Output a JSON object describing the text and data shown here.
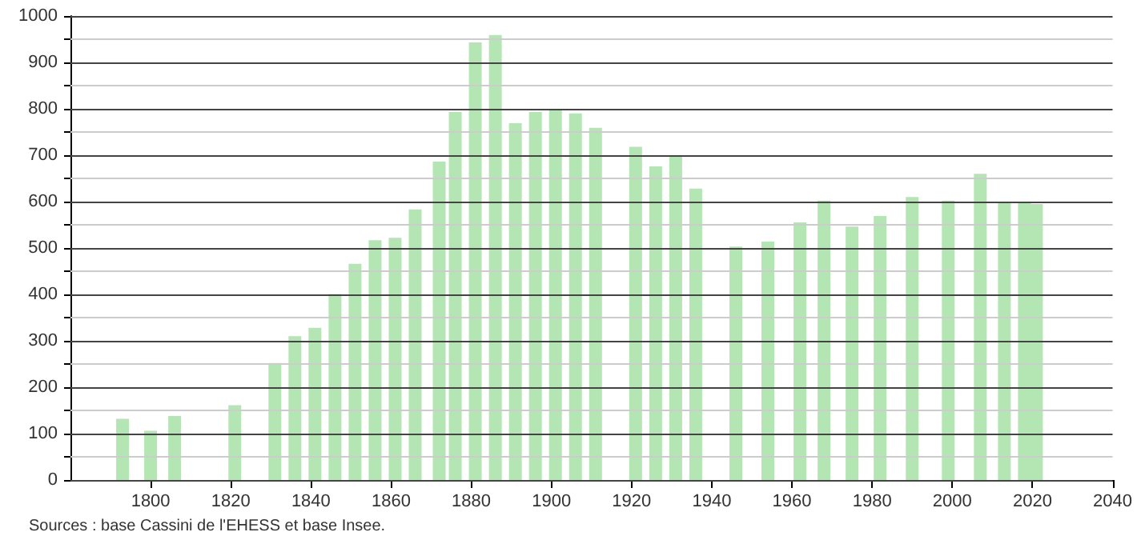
{
  "chart_data": {
    "type": "bar",
    "x": [
      1793,
      1800,
      1806,
      1821,
      1831,
      1836,
      1841,
      1846,
      1851,
      1856,
      1861,
      1866,
      1872,
      1876,
      1881,
      1886,
      1891,
      1896,
      1901,
      1906,
      1911,
      1921,
      1926,
      1931,
      1936,
      1946,
      1954,
      1962,
      1968,
      1975,
      1982,
      1990,
      1999,
      2007,
      2013,
      2018,
      2021
    ],
    "values": [
      132,
      106,
      138,
      161,
      252,
      310,
      328,
      401,
      466,
      517,
      522,
      583,
      686,
      793,
      943,
      959,
      769,
      793,
      798,
      790,
      759,
      718,
      676,
      697,
      628,
      503,
      514,
      555,
      602,
      546,
      569,
      610,
      602,
      660,
      600,
      597,
      595
    ],
    "color": "#b3e6b3",
    "xlim": [
      1780,
      2040
    ],
    "xticks": [
      1800,
      1820,
      1840,
      1860,
      1880,
      1900,
      1920,
      1940,
      1960,
      1980,
      2000,
      2020,
      2040
    ],
    "ylim": [
      0,
      1000
    ],
    "yticks": [
      0,
      {
        "value": 50,
        "label": null
      },
      100,
      {
        "value": 150,
        "label": null
      },
      200,
      {
        "value": 250,
        "label": null
      },
      300,
      {
        "value": 350,
        "label": null
      },
      400,
      {
        "value": 450,
        "label": null
      },
      500,
      {
        "value": 550,
        "label": null
      },
      600,
      {
        "value": 650,
        "label": null
      },
      700,
      {
        "value": 750,
        "label": null
      },
      800,
      {
        "value": 850,
        "label": null
      },
      900,
      {
        "value": 950,
        "label": null
      },
      1000
    ],
    "grid": "y",
    "annotations": [
      "Sources : base Cassini de l'EHESS et base Insee."
    ]
  }
}
